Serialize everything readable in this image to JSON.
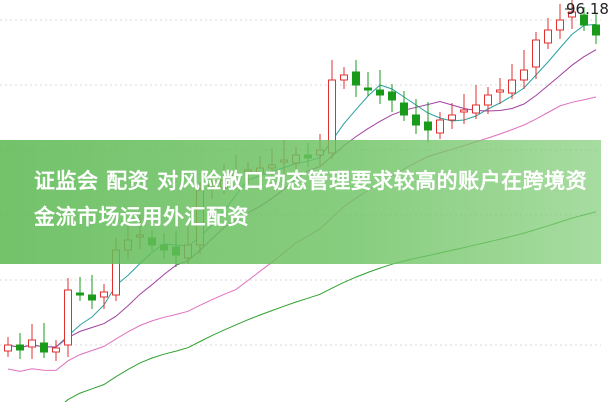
{
  "headline": "证监会 配资 对风险敞口动态管理要求较高的账户在跨境资金流市场运用外汇配资",
  "chart_data": {
    "type": "candlestick",
    "title": "",
    "max_label": "96.18",
    "close": [
      79.33,
      79.08,
      79.58,
      78.98,
      79.18,
      82.08,
      81.83,
      81.58,
      81.98,
      84.08,
      84.58,
      84.83,
      84.33,
      84.08,
      83.83,
      84.33,
      87.08,
      87.33,
      87.58,
      87.83,
      88.08,
      88.18,
      88.33,
      88.58,
      88.83,
      88.68,
      89.08,
      92.58,
      92.83,
      92.33,
      92.08,
      91.83,
      91.58,
      90.83,
      90.33,
      90.08,
      90.58,
      90.83,
      91.08,
      91.33,
      91.83,
      92.08,
      92.58,
      93.08,
      94.58,
      95.08,
      95.58,
      95.98,
      95.33,
      94.83
    ],
    "moving_averages": [
      5,
      10,
      20,
      60
    ],
    "colors": {
      "up": "#e03030",
      "down": "#1a9a1a",
      "ma5": "#2aa0a0",
      "ma10": "#a040a0",
      "ma20": "#e070c0",
      "ma60": "#30a030"
    },
    "grid": true
  }
}
